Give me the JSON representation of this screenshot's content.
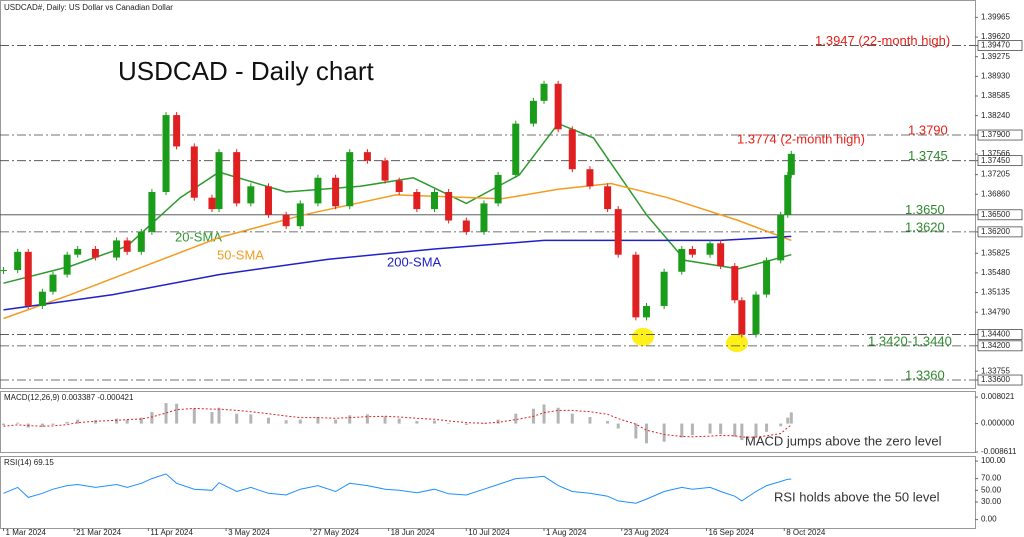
{
  "chart_data": [
    {
      "type": "candlestick",
      "title": "USDCAD - Daily chart",
      "subtitle": "USDCAD#, Daily:  US Dollar vs Canadian Dollar",
      "up_color": "#1a9c1a",
      "down_color": "#e02020",
      "xlim": [
        "2024-02-29",
        "2024-12-01"
      ],
      "ylim": [
        1.3346,
        1.4027
      ],
      "xticks": [
        {
          "value": "2024-03-01",
          "label": "1 Mar 2024"
        },
        {
          "value": "2024-03-21",
          "label": "21 Mar 2024"
        },
        {
          "value": "2024-04-11",
          "label": "11 Apr 2024"
        },
        {
          "value": "2024-05-03",
          "label": "3 May 2024"
        },
        {
          "value": "2024-05-27",
          "label": "27 May 2024"
        },
        {
          "value": "2024-06-18",
          "label": "18 Jun 2024"
        },
        {
          "value": "2024-07-10",
          "label": "10 Jul 2024"
        },
        {
          "value": "2024-08-01",
          "label": "1 Aug 2024"
        },
        {
          "value": "2024-08-23",
          "label": "23 Aug 2024"
        },
        {
          "value": "2024-09-16",
          "label": "16 Sep 2024"
        },
        {
          "value": "2024-10-08",
          "label": "8 Oct 2024"
        }
      ],
      "yticks": [
        1.39965,
        {
          "value": 1.3962,
          "label": "1.39620"
        },
        {
          "value": 1.3947,
          "label": "1.39470"
        },
        1.39275,
        {
          "value": 1.3893,
          "label": "1.38930"
        },
        1.38585,
        {
          "value": 1.3824,
          "label": "1.38240"
        },
        {
          "value": 1.379,
          "label": "1.37900"
        },
        1.37566,
        {
          "value": 1.3745,
          "label": "1.37450"
        },
        1.37205,
        {
          "value": 1.3686,
          "label": "1.36860"
        },
        {
          "value": 1.365,
          "label": "1.36500"
        },
        {
          "value": 1.362,
          "label": "1.36200"
        },
        1.35825,
        {
          "value": 1.3548,
          "label": "1.35480"
        },
        1.35135,
        {
          "value": 1.3479,
          "label": "1.34790"
        },
        {
          "value": 1.344,
          "label": "1.34400"
        },
        {
          "value": 1.342,
          "label": "1.34200"
        },
        1.33755,
        {
          "value": 1.336,
          "label": "1.33600"
        }
      ],
      "levels": [
        {
          "value": 1.3947,
          "style": "dashdot"
        },
        {
          "value": 1.379,
          "style": "dashdot"
        },
        {
          "value": 1.3745,
          "style": "dashdot"
        },
        {
          "value": 1.365,
          "style": "solid"
        },
        {
          "value": 1.362,
          "style": "dashdot"
        },
        {
          "value": 1.344,
          "style": "dashdot"
        },
        {
          "value": 1.342,
          "style": "dashdot"
        },
        {
          "value": 1.336,
          "style": "dashdot"
        }
      ],
      "annotations": [
        {
          "value": 1.3947,
          "label": "1.3947 (22-month high)",
          "color": "#e8201a"
        },
        {
          "value": 1.3774,
          "label": "1.3774 (2-month high)",
          "color": "#e8201a"
        },
        {
          "value": 1.379,
          "label": "1.3790",
          "color": "#e8201a"
        },
        {
          "value": 1.3745,
          "label": "1.3745",
          "color": "#2e8b2e"
        },
        {
          "value": 1.365,
          "label": "1.3650",
          "color": "#2e8b2e"
        },
        {
          "value": 1.362,
          "label": "1.3620",
          "color": "#2e8b2e"
        },
        {
          "value": 1.342,
          "label": "1.3420-1.3440",
          "color": "#2e8b2e"
        },
        {
          "value": 1.336,
          "label": "1.3360",
          "color": "#2e8b2e"
        }
      ],
      "x": [
        "2024-03-01",
        "2024-03-05",
        "2024-03-08",
        "2024-03-12",
        "2024-03-15",
        "2024-03-19",
        "2024-03-22",
        "2024-03-27",
        "2024-04-02",
        "2024-04-05",
        "2024-04-09",
        "2024-04-12",
        "2024-04-16",
        "2024-04-19",
        "2024-04-24",
        "2024-04-29",
        "2024-05-01",
        "2024-05-06",
        "2024-05-10",
        "2024-05-15",
        "2024-05-20",
        "2024-05-24",
        "2024-05-29",
        "2024-06-03",
        "2024-06-07",
        "2024-06-12",
        "2024-06-17",
        "2024-06-21",
        "2024-06-26",
        "2024-07-01",
        "2024-07-05",
        "2024-07-10",
        "2024-07-15",
        "2024-07-19",
        "2024-07-24",
        "2024-07-29",
        "2024-08-01",
        "2024-08-05",
        "2024-08-09",
        "2024-08-14",
        "2024-08-19",
        "2024-08-22",
        "2024-08-27",
        "2024-08-30",
        "2024-09-04",
        "2024-09-09",
        "2024-09-12",
        "2024-09-17",
        "2024-09-20",
        "2024-09-24",
        "2024-09-26",
        "2024-09-30",
        "2024-10-03",
        "2024-10-07",
        "2024-10-09",
        "2024-10-10"
      ],
      "values": [
        1.3553,
        1.3585,
        1.349,
        1.3515,
        1.3545,
        1.358,
        1.359,
        1.3575,
        1.3605,
        1.3585,
        1.362,
        1.369,
        1.3825,
        1.377,
        1.368,
        1.366,
        1.376,
        1.367,
        1.37,
        1.365,
        1.363,
        1.367,
        1.3715,
        1.3665,
        1.376,
        1.3745,
        1.371,
        1.369,
        1.366,
        1.369,
        1.364,
        1.362,
        1.367,
        1.372,
        1.381,
        1.385,
        1.388,
        1.38,
        1.373,
        1.37,
        1.366,
        1.358,
        1.347,
        1.349,
        1.355,
        1.359,
        1.358,
        1.36,
        1.356,
        1.35,
        1.344,
        1.351,
        1.357,
        1.365,
        1.372,
        1.3757
      ],
      "series": [
        {
          "name": "20-SMA",
          "color": "#2e9a2e",
          "x": [
            "2024-03-01",
            "2024-03-20",
            "2024-04-05",
            "2024-04-20",
            "2024-05-01",
            "2024-05-20",
            "2024-06-10",
            "2024-06-25",
            "2024-07-10",
            "2024-07-25",
            "2024-08-05",
            "2024-08-15",
            "2024-08-30",
            "2024-09-10",
            "2024-09-25",
            "2024-10-10"
          ],
          "values": [
            1.353,
            1.356,
            1.3595,
            1.368,
            1.3725,
            1.369,
            1.37,
            1.3715,
            1.367,
            1.372,
            1.381,
            1.3785,
            1.365,
            1.357,
            1.3555,
            1.358
          ]
        },
        {
          "name": "50-SMA",
          "color": "#f39c1f",
          "x": [
            "2024-03-01",
            "2024-03-20",
            "2024-04-10",
            "2024-05-01",
            "2024-05-25",
            "2024-06-20",
            "2024-07-20",
            "2024-08-05",
            "2024-08-20",
            "2024-09-05",
            "2024-09-25",
            "2024-10-10"
          ],
          "values": [
            1.3468,
            1.351,
            1.356,
            1.361,
            1.365,
            1.3685,
            1.3678,
            1.3695,
            1.3705,
            1.368,
            1.364,
            1.3605
          ]
        },
        {
          "name": "200-SMA",
          "color": "#2020c8",
          "x": [
            "2024-03-01",
            "2024-04-01",
            "2024-05-01",
            "2024-06-01",
            "2024-07-01",
            "2024-08-01",
            "2024-09-01",
            "2024-09-20",
            "2024-10-10"
          ],
          "values": [
            1.3483,
            1.351,
            1.3545,
            1.3572,
            1.359,
            1.3605,
            1.3605,
            1.3605,
            1.3612
          ]
        }
      ]
    },
    {
      "type": "macd",
      "title": "MACD(12,26,9) 0.003387 -0.000421",
      "annotation": "MACD jumps above the zero level",
      "color": "#b4b4b4",
      "signal_color": "#e02020",
      "ylim": [
        -0.00891,
        0.00987
      ],
      "yticks": [
        0.008021,
        {
          "value": 0,
          "label": "0.000000"
        },
        -0.008611
      ],
      "x": [
        "2024-03-01",
        "2024-03-05",
        "2024-03-08",
        "2024-03-12",
        "2024-03-15",
        "2024-03-19",
        "2024-03-22",
        "2024-03-27",
        "2024-04-02",
        "2024-04-05",
        "2024-04-09",
        "2024-04-12",
        "2024-04-16",
        "2024-04-19",
        "2024-04-24",
        "2024-04-29",
        "2024-05-01",
        "2024-05-06",
        "2024-05-10",
        "2024-05-15",
        "2024-05-20",
        "2024-05-24",
        "2024-05-29",
        "2024-06-03",
        "2024-06-07",
        "2024-06-12",
        "2024-06-17",
        "2024-06-21",
        "2024-06-26",
        "2024-07-01",
        "2024-07-05",
        "2024-07-10",
        "2024-07-15",
        "2024-07-19",
        "2024-07-24",
        "2024-07-29",
        "2024-08-01",
        "2024-08-05",
        "2024-08-09",
        "2024-08-14",
        "2024-08-19",
        "2024-08-22",
        "2024-08-27",
        "2024-08-30",
        "2024-09-04",
        "2024-09-09",
        "2024-09-12",
        "2024-09-17",
        "2024-09-20",
        "2024-09-24",
        "2024-09-26",
        "2024-09-30",
        "2024-10-03",
        "2024-10-07",
        "2024-10-09",
        "2024-10-10"
      ],
      "values": [
        -0.0005,
        0.0003,
        -0.0012,
        -0.001,
        -0.0004,
        0.0005,
        0.0012,
        0.001,
        0.0015,
        0.0012,
        0.0018,
        0.0035,
        0.0062,
        0.006,
        0.0045,
        0.0035,
        0.0048,
        0.003,
        0.0028,
        0.0018,
        0.001,
        0.0012,
        0.002,
        0.0012,
        0.0025,
        0.0028,
        0.0022,
        0.0015,
        0.0008,
        0.0009,
        0.0002,
        -0.0004,
        0.0002,
        0.0012,
        0.003,
        0.0045,
        0.0058,
        0.0048,
        0.003,
        0.002,
        0.0008,
        -0.0015,
        -0.0045,
        -0.006,
        -0.0055,
        -0.0042,
        -0.0035,
        -0.003,
        -0.0032,
        -0.004,
        -0.005,
        -0.004,
        -0.0025,
        -0.0008,
        0.0018,
        0.003387
      ],
      "signal_values": [
        -0.0008,
        -0.0004,
        -0.0006,
        -0.0008,
        -0.0007,
        -0.0003,
        0.0003,
        0.0007,
        0.001,
        0.0012,
        0.0014,
        0.002,
        0.0032,
        0.0042,
        0.0046,
        0.0044,
        0.0044,
        0.004,
        0.0036,
        0.003,
        0.0023,
        0.0018,
        0.0018,
        0.0016,
        0.0018,
        0.0021,
        0.0022,
        0.002,
        0.0016,
        0.0013,
        0.0008,
        0.0003,
        0.0001,
        0.0004,
        0.0012,
        0.0022,
        0.0033,
        0.004,
        0.004,
        0.0036,
        0.0028,
        0.0015,
        -0.0002,
        -0.002,
        -0.0033,
        -0.0039,
        -0.004,
        -0.0038,
        -0.0036,
        -0.0037,
        -0.0041,
        -0.0041,
        -0.0037,
        -0.003,
        -0.0012,
        -0.000421
      ]
    },
    {
      "type": "line",
      "title": "RSI(14) 69.15",
      "annotation": "RSI holds above the 50 level",
      "color": "#1e90ff",
      "ylim": [
        -14.3,
        108.6
      ],
      "yticks": [
        {
          "value": 100,
          "label": "100.00"
        },
        {
          "value": 70,
          "label": "70.00"
        },
        {
          "value": 50,
          "label": "50.00"
        },
        {
          "value": 30,
          "label": "30.00"
        },
        {
          "value": 0,
          "label": "0.00"
        }
      ],
      "x": [
        "2024-03-01",
        "2024-03-05",
        "2024-03-08",
        "2024-03-12",
        "2024-03-15",
        "2024-03-19",
        "2024-03-22",
        "2024-03-27",
        "2024-04-02",
        "2024-04-05",
        "2024-04-09",
        "2024-04-12",
        "2024-04-16",
        "2024-04-19",
        "2024-04-24",
        "2024-04-29",
        "2024-05-01",
        "2024-05-06",
        "2024-05-10",
        "2024-05-15",
        "2024-05-20",
        "2024-05-24",
        "2024-05-29",
        "2024-06-03",
        "2024-06-07",
        "2024-06-12",
        "2024-06-17",
        "2024-06-21",
        "2024-06-26",
        "2024-07-01",
        "2024-07-05",
        "2024-07-10",
        "2024-07-15",
        "2024-07-19",
        "2024-07-24",
        "2024-07-29",
        "2024-08-01",
        "2024-08-05",
        "2024-08-09",
        "2024-08-14",
        "2024-08-19",
        "2024-08-22",
        "2024-08-27",
        "2024-08-30",
        "2024-09-04",
        "2024-09-09",
        "2024-09-12",
        "2024-09-17",
        "2024-09-20",
        "2024-09-24",
        "2024-09-26",
        "2024-09-30",
        "2024-10-03",
        "2024-10-07",
        "2024-10-09",
        "2024-10-10"
      ],
      "values": [
        45,
        55,
        38,
        45,
        52,
        58,
        60,
        55,
        60,
        55,
        62,
        70,
        78,
        62,
        52,
        50,
        63,
        48,
        55,
        45,
        42,
        52,
        58,
        48,
        62,
        58,
        52,
        50,
        46,
        52,
        44,
        42,
        52,
        60,
        70,
        72,
        74,
        58,
        48,
        45,
        40,
        32,
        28,
        35,
        48,
        55,
        52,
        55,
        48,
        40,
        32,
        48,
        58,
        65,
        69,
        69.15
      ]
    }
  ]
}
